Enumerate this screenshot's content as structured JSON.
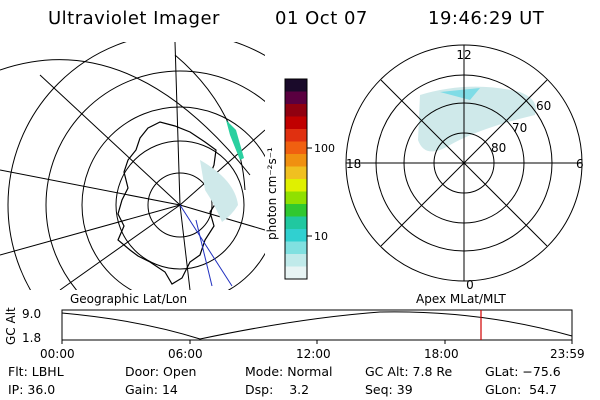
{
  "header": {
    "instrument": "Ultraviolet Imager",
    "date": "01 Oct 07",
    "time": "19:46:29 UT"
  },
  "colorbar": {
    "title": "photon cm⁻²s⁻¹",
    "ticks": [
      "100",
      "10"
    ],
    "colors": [
      "#1a0a2a",
      "#5a0040",
      "#900010",
      "#c00000",
      "#e03010",
      "#f06010",
      "#f09010",
      "#f0c020",
      "#e0f000",
      "#90e000",
      "#30c830",
      "#20c8a0",
      "#30d0d0",
      "#80e0e0",
      "#c0eaea",
      "#e8f4f4"
    ]
  },
  "maps": {
    "left_label": "Geographic Lat/Lon",
    "right_label": "Apex MLat/MLT",
    "mlt_labels": {
      "top": "12",
      "bottom": "0",
      "left": "18",
      "right": "6"
    },
    "lat_labels": [
      "60",
      "70",
      "80"
    ]
  },
  "altitude_plot": {
    "ylabel": "GC Alt",
    "y_ticks": [
      "9.0",
      "1.8"
    ],
    "x_ticks": [
      "00:00",
      "06:00",
      "12:00",
      "18:00",
      "23:59"
    ],
    "marker_color": "#d00000"
  },
  "footer": {
    "row1": [
      {
        "label": "Flt:",
        "value": "LBHL"
      },
      {
        "label": "Door:",
        "value": "Open"
      },
      {
        "label": "Mode:",
        "value": "Normal"
      },
      {
        "label": "GC Alt:",
        "value": "7.8 Re"
      },
      {
        "label": "GLat:",
        "value": "−75.6"
      }
    ],
    "row2": [
      {
        "label": "IP:",
        "value": "36.0"
      },
      {
        "label": "Gain:",
        "value": "14"
      },
      {
        "label": "Dsp:",
        "value": "3.2"
      },
      {
        "label": "Seq:",
        "value": "39"
      },
      {
        "label": "GLon:",
        "value": "54.7"
      }
    ]
  }
}
